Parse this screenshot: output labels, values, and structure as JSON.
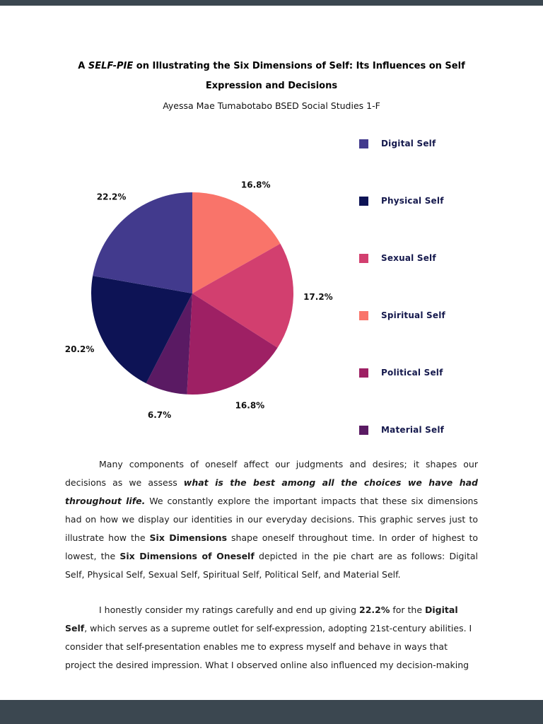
{
  "colors": {
    "page_background": "#ffffff",
    "viewer_bar": "#3b4750",
    "legend_text": "#15194d",
    "percent_label_text": "#111111",
    "body_text": "#1b1b1b"
  },
  "title": {
    "line1_runs": [
      {
        "text": "A ",
        "bold": true
      },
      {
        "text": "SELF-PIE",
        "bold": true,
        "italic": true
      },
      {
        "text": " on Illustrating the Six Dimensions of Self: Its Influences on Self",
        "bold": true
      }
    ],
    "line2": "Expression and Decisions",
    "byline": "Ayessa Mae Tumabotabo BSED Social Studies 1-F"
  },
  "chart_data": {
    "type": "pie",
    "title": "",
    "unit": "percent",
    "slices": [
      {
        "label": "Digital Self",
        "value": 22.2,
        "display": "22.2%",
        "color": "#423a8d"
      },
      {
        "label": "Physical Self",
        "value": 20.2,
        "display": "20.2%",
        "color": "#0d1355"
      },
      {
        "label": "Sexual Self",
        "value": 17.2,
        "display": "17.2%",
        "color": "#d23f6f"
      },
      {
        "label": "Spiritual Self",
        "value": 16.8,
        "display": "16.8%",
        "color": "#f9746a"
      },
      {
        "label": "Political Self",
        "value": 16.8,
        "display": "16.8%",
        "color": "#9e2064"
      },
      {
        "label": "Material Self",
        "value": 6.7,
        "display": "6.7%",
        "color": "#5a1a63"
      }
    ],
    "draw_order_clockwise_from_top": [
      "Spiritual Self",
      "Sexual Self",
      "Political Self",
      "Material Self",
      "Physical Self",
      "Digital Self"
    ],
    "legend_order": [
      "Digital Self",
      "Physical Self",
      "Sexual Self",
      "Spiritual Self",
      "Political Self",
      "Material Self"
    ],
    "legend_position": "right",
    "labels_outside": true
  },
  "paragraphs": [
    {
      "runs": [
        {
          "text": "Many components of oneself affect our judgments and desires; it shapes our decisions as we assess "
        },
        {
          "text": "what is the best among all the choices we have had throughout life.",
          "bold": true,
          "italic": true
        },
        {
          "text": " We constantly explore the important impacts that these six dimensions had on how we display our identities in our everyday decisions. This graphic serves just to illustrate how the "
        },
        {
          "text": "Six Dimensions",
          "bold": true
        },
        {
          "text": " shape oneself throughout time. In order of highest to lowest, the "
        },
        {
          "text": "Six Dimensions of Oneself",
          "bold": true
        },
        {
          "text": " depicted in the pie chart are as follows: Digital Self, Physical Self, Sexual Self, Spiritual Self, Political Self, and Material Self."
        }
      ]
    },
    {
      "runs": [
        {
          "text": "I honestly consider my ratings carefully and end up giving "
        },
        {
          "text": "22.2%",
          "bold": true
        },
        {
          "text": " for the "
        },
        {
          "text": "Digital Self",
          "bold": true
        },
        {
          "text": ", which serves as a supreme outlet for self-expression, adopting 21st-century abilities. I consider that self-presentation enables me to express myself and behave in ways that project the desired impression. What I observed online also influenced my decision-making"
        }
      ]
    }
  ]
}
